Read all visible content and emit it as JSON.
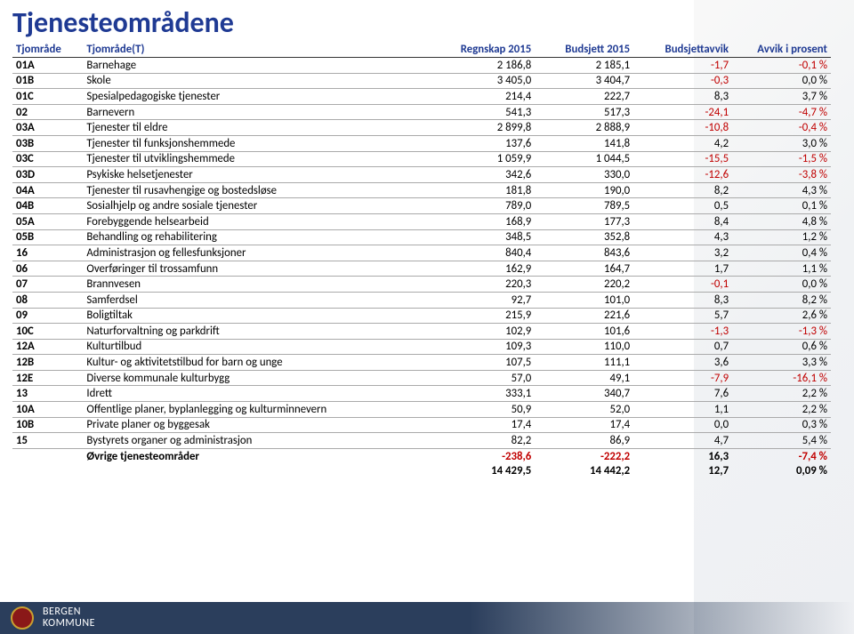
{
  "title": "Tjenesteområdene",
  "footer": {
    "org_line1": "BERGEN",
    "org_line2": "KOMMUNE"
  },
  "colors": {
    "header": "#1f3a93",
    "negative": "#c00000",
    "border": "#aaaaaa",
    "border_heavy": "#333333",
    "footer_bg": "#2b3e5c"
  },
  "table": {
    "columns": [
      "Tjområde",
      "Tjområde(T)",
      "Regnskap 2015",
      "Budsjett 2015",
      "Budsjettavvik",
      "Avvik i prosent"
    ],
    "rows": [
      [
        "01A",
        "Barnehage",
        "2 186,8",
        "2 185,1",
        "-1,7",
        "-0,1 %"
      ],
      [
        "01B",
        "Skole",
        "3 405,0",
        "3 404,7",
        "-0,3",
        "0,0 %"
      ],
      [
        "01C",
        "Spesialpedagogiske tjenester",
        "214,4",
        "222,7",
        "8,3",
        "3,7 %"
      ],
      [
        "02",
        "Barnevern",
        "541,3",
        "517,3",
        "-24,1",
        "-4,7 %"
      ],
      [
        "03A",
        "Tjenester til eldre",
        "2 899,8",
        "2 888,9",
        "-10,8",
        "-0,4 %"
      ],
      [
        "03B",
        "Tjenester til funksjonshemmede",
        "137,6",
        "141,8",
        "4,2",
        "3,0 %"
      ],
      [
        "03C",
        "Tjenester til utviklingshemmede",
        "1 059,9",
        "1 044,5",
        "-15,5",
        "-1,5 %"
      ],
      [
        "03D",
        "Psykiske helsetjenester",
        "342,6",
        "330,0",
        "-12,6",
        "-3,8 %"
      ],
      [
        "04A",
        "Tjenester til rusavhengige og bostedsløse",
        "181,8",
        "190,0",
        "8,2",
        "4,3 %"
      ],
      [
        "04B",
        "Sosialhjelp og andre sosiale tjenester",
        "789,0",
        "789,5",
        "0,5",
        "0,1 %"
      ],
      [
        "05A",
        "Forebyggende helsearbeid",
        "168,9",
        "177,3",
        "8,4",
        "4,8 %"
      ],
      [
        "05B",
        "Behandling og rehabilitering",
        "348,5",
        "352,8",
        "4,3",
        "1,2 %"
      ],
      [
        "16",
        "Administrasjon og fellesfunksjoner",
        "840,4",
        "843,6",
        "3,2",
        "0,4 %"
      ],
      [
        "06",
        "Overføringer til trossamfunn",
        "162,9",
        "164,7",
        "1,7",
        "1,1 %"
      ],
      [
        "07",
        "Brannvesen",
        "220,3",
        "220,2",
        "-0,1",
        "0,0 %"
      ],
      [
        "08",
        "Samferdsel",
        "92,7",
        "101,0",
        "8,3",
        "8,2 %"
      ],
      [
        "09",
        "Boligtiltak",
        "215,9",
        "221,6",
        "5,7",
        "2,6 %"
      ],
      [
        "10C",
        "Naturforvaltning og parkdrift",
        "102,9",
        "101,6",
        "-1,3",
        "-1,3 %"
      ],
      [
        "12A",
        "Kulturtilbud",
        "109,3",
        "110,0",
        "0,7",
        "0,6 %"
      ],
      [
        "12B",
        "Kultur- og aktivitetstilbud for barn og unge",
        "107,5",
        "111,1",
        "3,6",
        "3,3 %"
      ],
      [
        "12E",
        "Diverse kommunale kulturbygg",
        "57,0",
        "49,1",
        "-7,9",
        "-16,1 %"
      ],
      [
        "13",
        "Idrett",
        "333,1",
        "340,7",
        "7,6",
        "2,2 %"
      ],
      [
        "10A",
        "Offentlige planer, byplanlegging og kulturminnevern",
        "50,9",
        "52,0",
        "1,1",
        "2,2 %"
      ],
      [
        "10B",
        "Private planer og byggesak",
        "17,4",
        "17,4",
        "0,0",
        "0,3 %"
      ],
      [
        "15",
        "Bystyrets organer og administrasjon",
        "82,2",
        "86,9",
        "4,7",
        "5,4 %"
      ],
      [
        "",
        "Øvrige tjenesteområder",
        "-238,6",
        "-222,2",
        "16,3",
        "-7,4 %"
      ]
    ],
    "grand": [
      "",
      "",
      "14 429,5",
      "14 442,2",
      "12,7",
      "0,09 %"
    ]
  }
}
